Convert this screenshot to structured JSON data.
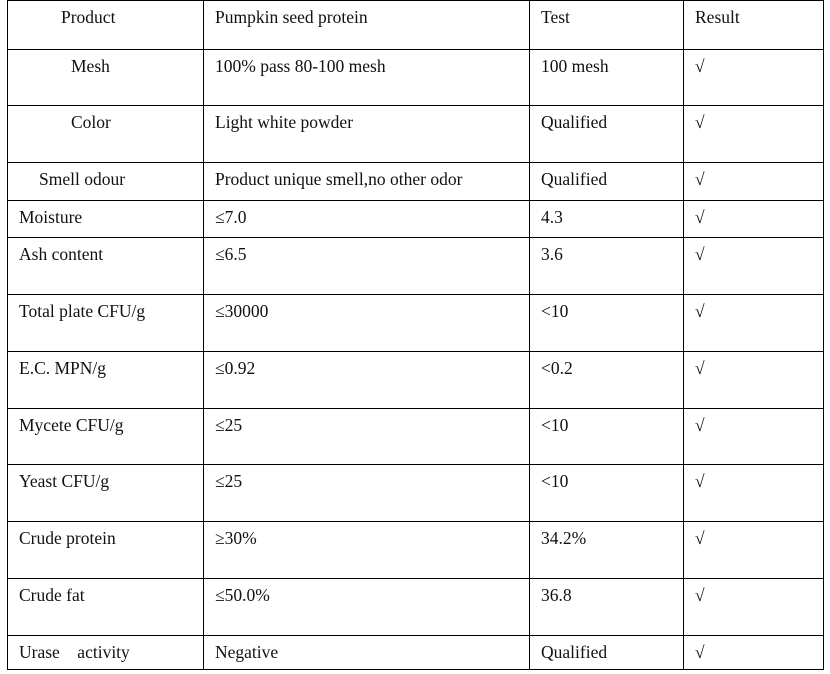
{
  "table": {
    "header": [
      "Product",
      "Pumpkin seed protein",
      "Test",
      "Result"
    ],
    "rows": [
      [
        "Mesh",
        "100% pass 80-100 mesh",
        "100 mesh",
        "√"
      ],
      [
        "Color",
        "Light white powder",
        "Qualified",
        "√"
      ],
      [
        "Smell odour",
        "Product unique smell,no other odor",
        "Qualified",
        "√"
      ],
      [
        "Moisture",
        "≤7.0",
        "4.3",
        "√"
      ],
      [
        "Ash content",
        "≤6.5",
        "3.6",
        "√"
      ],
      [
        "Total plate CFU/g",
        "≤30000",
        "<10",
        "√"
      ],
      [
        "E.C. MPN/g",
        "≤0.92",
        "<0.2",
        "√"
      ],
      [
        "Mycete CFU/g",
        "≤25",
        "<10",
        "√"
      ],
      [
        "Yeast CFU/g",
        "≤25",
        "<10",
        "√"
      ],
      [
        "Crude protein",
        "≥30%",
        "34.2%",
        "√"
      ],
      [
        "Crude fat",
        "≤50.0%",
        "36.8",
        "√"
      ],
      [
        "Urase    activity",
        "Negative",
        "Qualified",
        "√"
      ]
    ]
  }
}
